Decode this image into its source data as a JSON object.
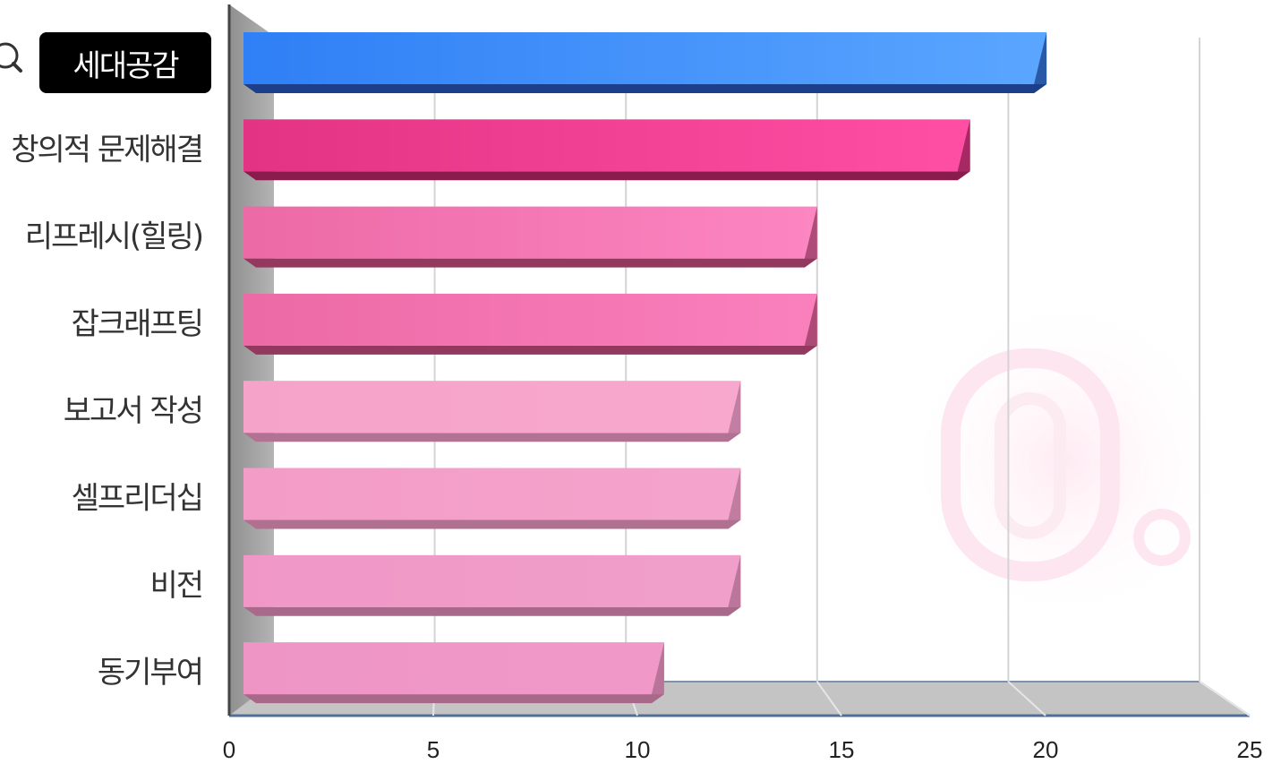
{
  "chart_data": {
    "type": "bar",
    "orientation": "horizontal",
    "style": "3d",
    "categories": [
      "세대공감",
      "창의적 문제해결",
      "리프레시(힐링)",
      "잡크래프팅",
      "보고서 작성",
      "셀프리더십",
      "비전",
      "동기부여"
    ],
    "values": [
      21,
      19,
      15,
      15,
      13,
      13,
      13,
      11
    ],
    "highlighted_category": "세대공감",
    "xlim": [
      0,
      25
    ],
    "xticks": [
      "0",
      "5",
      "10",
      "15",
      "20",
      "25"
    ],
    "grid": "vertical",
    "legend": "none",
    "bar_colors": [
      [
        "#2f7ff6",
        "#5aa6ff",
        "#1b3f8a"
      ],
      [
        "#e23384",
        "#ff4fa5",
        "#8a1c4d"
      ],
      [
        "#ec6aa6",
        "#fc86c2",
        "#93385f"
      ],
      [
        "#ec6aa6",
        "#fa80bd",
        "#93385f"
      ],
      [
        "#f5a3c9",
        "#f8a7cd",
        "#b27294"
      ],
      [
        "#f39cc8",
        "#f4a4cc",
        "#b07090"
      ],
      [
        "#f097c7",
        "#f09fca",
        "#a8698b"
      ],
      [
        "#ee95c5",
        "#f099c8",
        "#a7688a"
      ]
    ]
  }
}
